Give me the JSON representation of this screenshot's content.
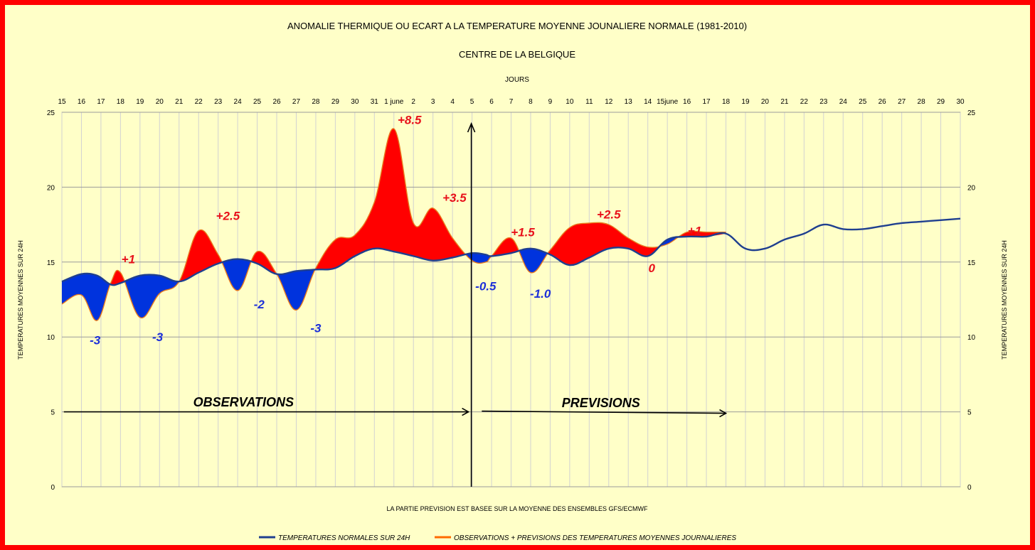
{
  "chart_data": {
    "type": "area",
    "title": "ANOMALIE THERMIQUE OU ECART A LA TEMPERATURE MOYENNE JOUNALIERE NORMALE (1981-2010)",
    "subtitle": "CENTRE DE LA BELGIQUE",
    "top_axis_label": "JOURS",
    "ylabel_left": "TEMPERATURES MOYENNES SUR 24H",
    "ylabel_right": "TEMPERATURES MOYENNES SUR 24H",
    "footer_note": "LA PARTIE PREVISION EST BASEE SUR LA MOYENNE DES ENSEMBLES GFS/ECMWF",
    "ylim": [
      0,
      25
    ],
    "yticks": [
      "0",
      "5",
      "10",
      "15",
      "20",
      "25"
    ],
    "x_ticks": [
      "15",
      "16",
      "17",
      "18",
      "19",
      "20",
      "21",
      "22",
      "23",
      "24",
      "25",
      "26",
      "27",
      "28",
      "29",
      "30",
      "31",
      "1 june",
      "2",
      "3",
      "4",
      "5",
      "6",
      "7",
      "8",
      "9",
      "10",
      "11",
      "12",
      "13",
      "14",
      "15june",
      "16",
      "17",
      "18",
      "19",
      "20",
      "21",
      "22",
      "23",
      "24",
      "25",
      "26",
      "27",
      "28",
      "29",
      "30"
    ],
    "grid": true,
    "colors": {
      "normal": "#1f3f8f",
      "observed": "#ff0000",
      "warm_fill": "#ff0000",
      "cold_fill": "#0033dd",
      "warm_text": "#e8101a",
      "cold_text": "#1c2fd8"
    },
    "series": [
      {
        "name": "TEMPERATURES NORMALES SUR 24H",
        "x": [
          0,
          1,
          1.8,
          2.5,
          3,
          4,
          5,
          6,
          7,
          8,
          9,
          10,
          11,
          12,
          13,
          14,
          15,
          16,
          17,
          18,
          19,
          20,
          21,
          21.7,
          22,
          23,
          24,
          25,
          26,
          27,
          28,
          29,
          30,
          31,
          32,
          33,
          34,
          35,
          36,
          37,
          38,
          39,
          40,
          41,
          42,
          43,
          44,
          45,
          46
        ],
        "values": [
          13.7,
          14.2,
          14.1,
          13.5,
          13.6,
          14.1,
          14.1,
          13.7,
          14.3,
          14.9,
          15.2,
          14.9,
          14.2,
          14.4,
          14.5,
          14.6,
          15.4,
          15.9,
          15.7,
          15.4,
          15.1,
          15.3,
          15.6,
          15.5,
          15.4,
          15.6,
          15.9,
          15.5,
          14.8,
          15.3,
          15.9,
          15.9,
          15.4,
          16.5,
          16.7,
          16.7,
          16.9,
          15.9,
          15.9,
          16.5,
          16.9,
          17.5,
          17.2,
          17.2,
          17.4,
          17.6,
          17.7,
          17.8,
          17.9
        ]
      },
      {
        "name": "OBSERVATIONS + PREVISIONS DES TEMPERATURES MOYENNES JOURNALIERES",
        "x": [
          0,
          1,
          1.8,
          2.5,
          3,
          4,
          5,
          6,
          7,
          8,
          9,
          10,
          11,
          12,
          13,
          14,
          15,
          16,
          17,
          18,
          19,
          20,
          21,
          21.7,
          22,
          23,
          24,
          25,
          26,
          27,
          28,
          29,
          30,
          31,
          32,
          33,
          34
        ],
        "values": [
          12.2,
          12.8,
          11.1,
          13.6,
          14.3,
          11.3,
          12.9,
          13.7,
          17.1,
          15.5,
          13.1,
          15.7,
          14.2,
          11.8,
          14.6,
          16.5,
          16.8,
          19.0,
          23.9,
          17.6,
          18.6,
          16.6,
          15.1,
          15.0,
          15.4,
          16.6,
          14.3,
          15.8,
          17.3,
          17.6,
          17.5,
          16.6,
          16.0,
          16.2,
          17.0,
          17.0,
          17.0
        ]
      }
    ],
    "annotations": [
      {
        "text": "-3",
        "kind": "cold",
        "x": 1.7,
        "y": 9.8
      },
      {
        "text": "+1",
        "kind": "warm",
        "x": 3.4,
        "y": 15.2
      },
      {
        "text": "-3",
        "kind": "cold",
        "x": 4.9,
        "y": 10.0
      },
      {
        "text": "+2.5",
        "kind": "warm",
        "x": 8.5,
        "y": 18.1
      },
      {
        "text": "-2",
        "kind": "cold",
        "x": 10.1,
        "y": 12.2
      },
      {
        "text": "-3",
        "kind": "cold",
        "x": 13.0,
        "y": 10.6
      },
      {
        "text": "+8.5",
        "kind": "warm",
        "x": 17.8,
        "y": 24.5
      },
      {
        "text": "+3.5",
        "kind": "warm",
        "x": 20.1,
        "y": 19.3
      },
      {
        "text": "-0.5",
        "kind": "cold",
        "x": 21.7,
        "y": 13.4
      },
      {
        "text": "+1.5",
        "kind": "warm",
        "x": 23.6,
        "y": 17.0
      },
      {
        "text": "-1.0",
        "kind": "cold",
        "x": 24.5,
        "y": 12.9
      },
      {
        "text": "+2.5",
        "kind": "warm",
        "x": 28.0,
        "y": 18.2
      },
      {
        "text": "0",
        "kind": "warm",
        "x": 30.2,
        "y": 14.6
      },
      {
        "text": "+1",
        "kind": "warm",
        "x": 32.4,
        "y": 17.1
      }
    ],
    "period_labels": {
      "observations": "OBSERVATIONS",
      "previsions": "PREVISIONS"
    },
    "legend": [
      "TEMPERATURES NORMALES SUR 24H",
      "OBSERVATIONS + PREVISIONS DES TEMPERATURES MOYENNES JOURNALIERES"
    ],
    "legend_position": "bottom"
  }
}
